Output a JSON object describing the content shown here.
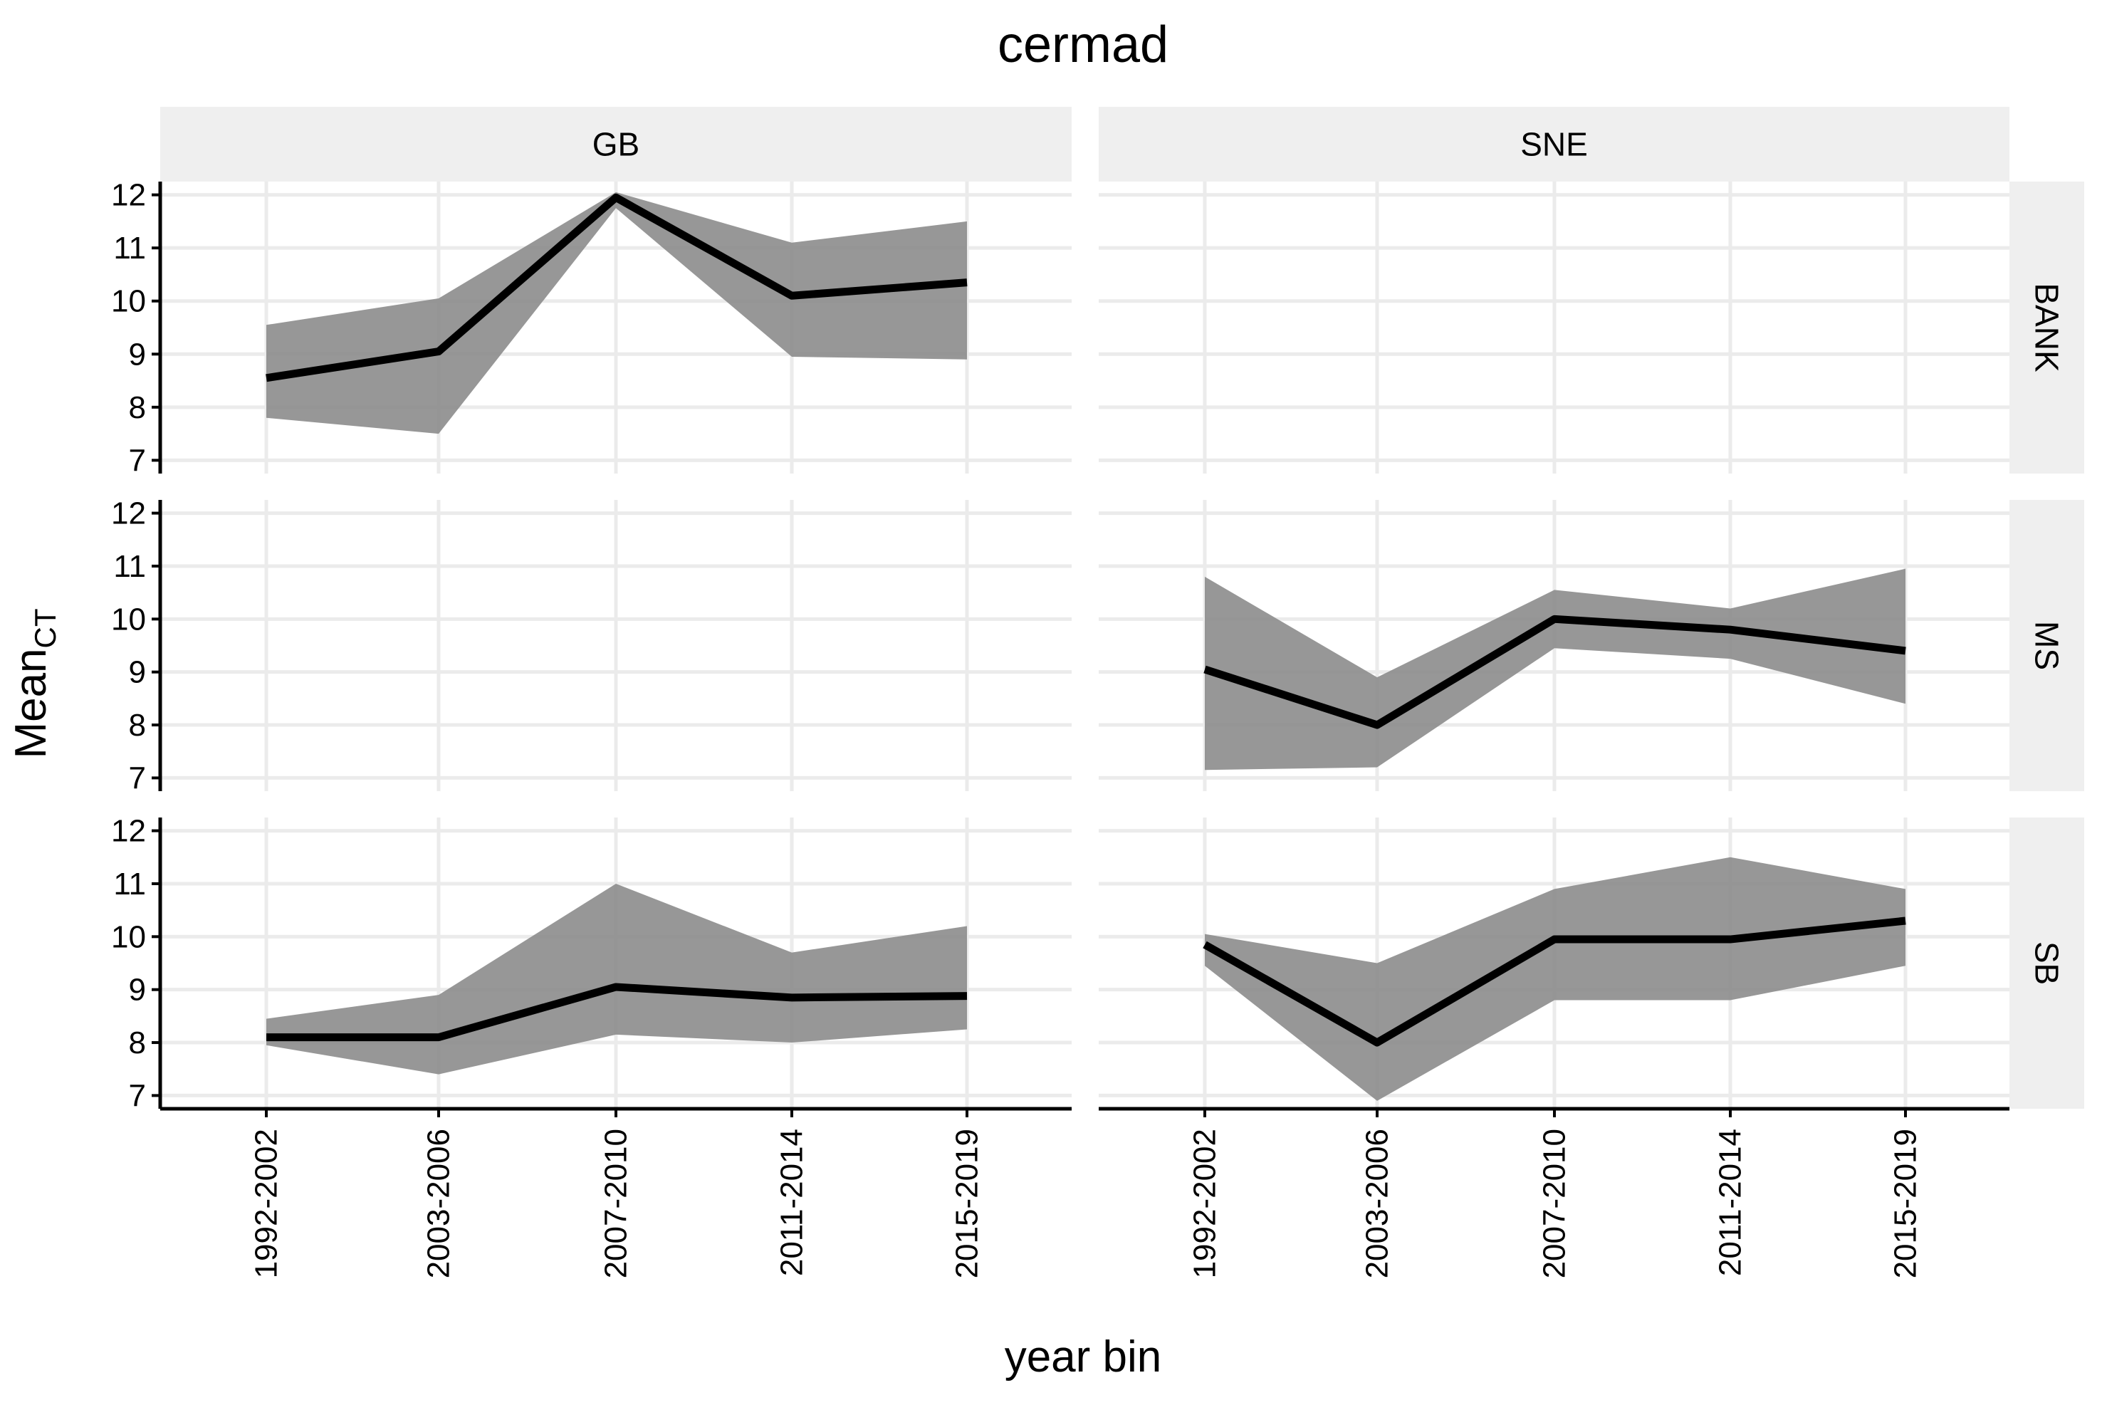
{
  "chart_data": {
    "type": "area",
    "title": "cermad",
    "xlabel": "year bin",
    "ylabel": {
      "main": "Mean",
      "sub": "CT"
    },
    "categories": [
      "1992-2002",
      "2003-2006",
      "2007-2010",
      "2011-2014",
      "2015-2019"
    ],
    "yticks": [
      7,
      8,
      9,
      10,
      11,
      12
    ],
    "ylim": [
      6.75,
      12.25
    ],
    "grid": true,
    "legend": "none",
    "colors": {
      "line": "#000000",
      "ribbon": "#8c8c8c",
      "strip": "#efefef",
      "grid": "#ebebeb"
    },
    "facet_cols": [
      "GB",
      "SNE"
    ],
    "facet_rows": [
      "BANK",
      "MS",
      "SB"
    ],
    "panels": [
      {
        "col": "GB",
        "row": "BANK",
        "mean": [
          8.55,
          9.05,
          11.95,
          10.1,
          10.35
        ],
        "lower": [
          7.8,
          7.5,
          11.75,
          8.95,
          8.9
        ],
        "upper": [
          9.55,
          10.05,
          12.05,
          11.1,
          11.5
        ]
      },
      {
        "col": "SNE",
        "row": "BANK",
        "mean": [],
        "lower": [],
        "upper": []
      },
      {
        "col": "GB",
        "row": "MS",
        "mean": [],
        "lower": [],
        "upper": []
      },
      {
        "col": "SNE",
        "row": "MS",
        "mean": [
          9.05,
          8.0,
          10.0,
          9.8,
          9.4
        ],
        "lower": [
          7.15,
          7.2,
          9.45,
          9.25,
          8.4
        ],
        "upper": [
          10.8,
          8.9,
          10.55,
          10.2,
          10.95
        ]
      },
      {
        "col": "GB",
        "row": "SB",
        "mean": [
          8.1,
          8.1,
          9.05,
          8.85,
          8.88
        ],
        "lower": [
          7.95,
          7.4,
          8.15,
          8.0,
          8.25
        ],
        "upper": [
          8.45,
          8.9,
          11.0,
          9.7,
          10.2
        ]
      },
      {
        "col": "SNE",
        "row": "SB",
        "mean": [
          9.85,
          8.0,
          9.95,
          9.95,
          10.3
        ],
        "lower": [
          9.45,
          6.9,
          8.8,
          8.8,
          9.45
        ],
        "upper": [
          10.05,
          9.5,
          10.9,
          11.5,
          10.9
        ]
      }
    ]
  }
}
